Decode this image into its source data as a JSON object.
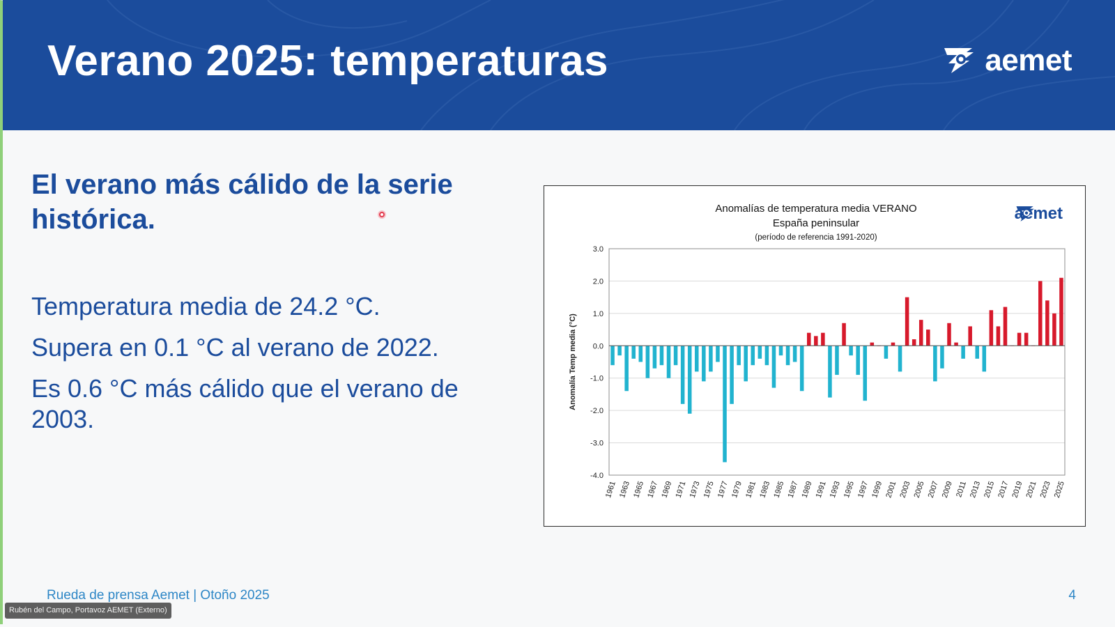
{
  "slide": {
    "title": "Verano 2025: temperaturas",
    "logo_text": "aemet",
    "subheading": "El verano más cálido de la serie histórica.",
    "facts": [
      "Temperatura media de 24.2 °C.",
      "Supera en 0.1 °C al verano de 2022.",
      "Es 0.6 °C más cálido que el verano de 2003."
    ],
    "footer": "Rueda de prensa Aemet | Otoño 2025",
    "page_number": "4"
  },
  "speaker_label": "Rubén del Campo, Portavoz AEMET (Externo)",
  "colors": {
    "header": "#1b4c9c",
    "positive": "#d7192b",
    "negative": "#21b3cf",
    "footer": "#2d86c6"
  },
  "chart_data": {
    "type": "bar",
    "title": "Anomalías de temperatura media VERANO",
    "subtitle": "España peninsular",
    "reference": "(período de referencia 1991-2020)",
    "ylabel": "Anomalía Temp media (°C)",
    "ylim": [
      -4.0,
      3.0
    ],
    "yticks": [
      "3.0",
      "2.0",
      "1.0",
      "0.0",
      "-1.0",
      "-2.0",
      "-3.0",
      "-4.0"
    ],
    "grid": true,
    "x_tick_labels": [
      "1961",
      "1963",
      "1965",
      "1967",
      "1969",
      "1971",
      "1973",
      "1975",
      "1977",
      "1979",
      "1981",
      "1983",
      "1985",
      "1987",
      "1989",
      "1991",
      "1993",
      "1995",
      "1997",
      "1999",
      "2001",
      "2003",
      "2005",
      "2007",
      "2009",
      "2011",
      "2013",
      "2015",
      "2017",
      "2019",
      "2021",
      "2023",
      "2025"
    ],
    "years": [
      1961,
      1962,
      1963,
      1964,
      1965,
      1966,
      1967,
      1968,
      1969,
      1970,
      1971,
      1972,
      1973,
      1974,
      1975,
      1976,
      1977,
      1978,
      1979,
      1980,
      1981,
      1982,
      1983,
      1984,
      1985,
      1986,
      1987,
      1988,
      1989,
      1990,
      1991,
      1992,
      1993,
      1994,
      1995,
      1996,
      1997,
      1998,
      1999,
      2000,
      2001,
      2002,
      2003,
      2004,
      2005,
      2006,
      2007,
      2008,
      2009,
      2010,
      2011,
      2012,
      2013,
      2014,
      2015,
      2016,
      2017,
      2018,
      2019,
      2020,
      2021,
      2022,
      2023,
      2024,
      2025
    ],
    "values": [
      -0.6,
      -0.3,
      -1.4,
      -0.4,
      -0.5,
      -1.0,
      -0.7,
      -0.6,
      -1.0,
      -0.6,
      -1.8,
      -2.1,
      -0.8,
      -1.1,
      -0.8,
      -0.5,
      -3.6,
      -1.8,
      -0.6,
      -1.1,
      -0.6,
      -0.4,
      -0.6,
      -1.3,
      -0.3,
      -0.6,
      -0.5,
      -1.4,
      0.4,
      0.3,
      0.4,
      -1.6,
      -0.9,
      0.7,
      -0.3,
      -0.9,
      -1.7,
      0.1,
      0.0,
      -0.4,
      0.1,
      -0.8,
      1.5,
      0.2,
      0.8,
      0.5,
      -1.1,
      -0.7,
      0.7,
      0.1,
      -0.4,
      0.6,
      -0.4,
      -0.8,
      1.1,
      0.6,
      1.2,
      0.0,
      0.4,
      0.4,
      0.0,
      2.0,
      1.4,
      1.0,
      2.1
    ]
  }
}
